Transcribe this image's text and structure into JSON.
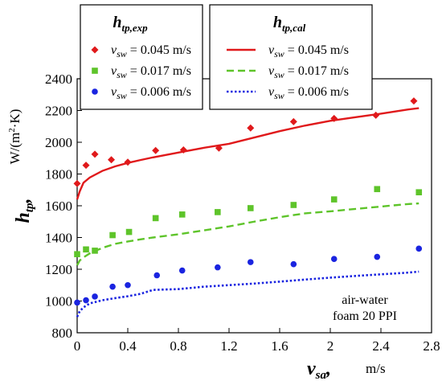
{
  "chart_data": {
    "type": "scatter",
    "x_label": {
      "main": "v",
      "sub": "sa",
      "sep": ",",
      "unit": "m/s"
    },
    "y_label": {
      "main": "h",
      "sub": "tp",
      "sep": ",",
      "unit_prefix": "W/(m",
      "unit_sup": "2",
      "unit_suffix": "·K)"
    },
    "xlim": [
      0,
      2.8
    ],
    "ylim": [
      800,
      2400
    ],
    "x_ticks": [
      "0",
      "0.4",
      "0.8",
      "1.2",
      "1.6",
      "2",
      "2.4",
      "2.8"
    ],
    "y_ticks": [
      "800",
      "1000",
      "1200",
      "1400",
      "1600",
      "1800",
      "2000",
      "2200",
      "2400"
    ],
    "annotation": [
      "air-water",
      "foam 20 PPI"
    ],
    "legend_left": {
      "title_main": "h",
      "title_sub": "tp,exp",
      "entries": [
        {
          "series": 0,
          "var": "v",
          "sub": "sw",
          "text": " = 0.045 m/s"
        },
        {
          "series": 1,
          "var": "v",
          "sub": "sw",
          "text": " = 0.017 m/s"
        },
        {
          "series": 2,
          "var": "v",
          "sub": "sw",
          "text": " = 0.006 m/s"
        }
      ]
    },
    "legend_right": {
      "title_main": "h",
      "title_sub": "tp,cal",
      "entries": [
        {
          "series": 3,
          "var": "v",
          "sub": "sw",
          "text": " = 0.045 m/s"
        },
        {
          "series": 4,
          "var": "v",
          "sub": "sw",
          "text": " = 0.017 m/s"
        },
        {
          "series": 5,
          "var": "v",
          "sub": "sw",
          "text": " = 0.006 m/s"
        }
      ]
    },
    "series": [
      {
        "name": "h_tp,exp, v_sw = 0.045 m/s",
        "kind": "scatter",
        "marker": "diamond",
        "color": "#e0191b",
        "x": [
          0,
          0.07,
          0.14,
          0.27,
          0.4,
          0.62,
          0.84,
          1.12,
          1.37,
          1.71,
          2.03,
          2.36,
          2.66
        ],
        "y": [
          1740,
          1855,
          1925,
          1890,
          1875,
          1948,
          1952,
          1963,
          2090,
          2130,
          2150,
          2170,
          2260
        ]
      },
      {
        "name": "h_tp,exp, v_sw = 0.017 m/s",
        "kind": "scatter",
        "marker": "square",
        "color": "#5ec42a",
        "x": [
          0,
          0.07,
          0.14,
          0.28,
          0.41,
          0.62,
          0.83,
          1.11,
          1.37,
          1.71,
          2.03,
          2.37,
          2.7
        ],
        "y": [
          1295,
          1325,
          1317,
          1415,
          1435,
          1522,
          1545,
          1560,
          1585,
          1605,
          1640,
          1705,
          1685
        ]
      },
      {
        "name": "h_tp,exp, v_sw = 0.006 m/s",
        "kind": "scatter",
        "marker": "circle",
        "color": "#1a24e0",
        "x": [
          0,
          0.07,
          0.14,
          0.28,
          0.4,
          0.63,
          0.83,
          1.11,
          1.37,
          1.71,
          2.03,
          2.37,
          2.7
        ],
        "y": [
          990,
          1005,
          1028,
          1090,
          1100,
          1162,
          1192,
          1212,
          1245,
          1232,
          1265,
          1278,
          1330
        ]
      },
      {
        "name": "h_tp,cal, v_sw = 0.045 m/s",
        "kind": "line",
        "dash": "solid",
        "color": "#e0191b",
        "x": [
          0,
          0.02,
          0.05,
          0.1,
          0.2,
          0.3,
          0.4,
          0.5,
          0.6,
          0.8,
          1.0,
          1.2,
          1.4,
          1.6,
          1.8,
          2.0,
          2.2,
          2.4,
          2.6,
          2.7
        ],
        "y": [
          1640,
          1690,
          1745,
          1778,
          1820,
          1848,
          1870,
          1888,
          1905,
          1935,
          1965,
          1990,
          2030,
          2070,
          2105,
          2135,
          2158,
          2180,
          2205,
          2215
        ]
      },
      {
        "name": "h_tp,cal, v_sw = 0.017 m/s",
        "kind": "line",
        "dash": "dashed",
        "color": "#5ec42a",
        "x": [
          0,
          0.02,
          0.05,
          0.1,
          0.2,
          0.3,
          0.4,
          0.5,
          0.6,
          0.8,
          1.0,
          1.2,
          1.4,
          1.6,
          1.8,
          2.0,
          2.2,
          2.4,
          2.6,
          2.7
        ],
        "y": [
          1225,
          1255,
          1275,
          1300,
          1335,
          1360,
          1375,
          1388,
          1400,
          1420,
          1445,
          1470,
          1500,
          1528,
          1552,
          1565,
          1580,
          1595,
          1610,
          1615
        ]
      },
      {
        "name": "h_tp,cal, v_sw = 0.006 m/s",
        "kind": "line",
        "dash": "dotted",
        "color": "#1a24e0",
        "x": [
          0,
          0.02,
          0.05,
          0.1,
          0.2,
          0.3,
          0.4,
          0.5,
          0.6,
          0.8,
          1.0,
          1.2,
          1.4,
          1.6,
          1.8,
          2.0,
          2.2,
          2.4,
          2.6,
          2.7
        ],
        "y": [
          900,
          935,
          960,
          985,
          1005,
          1018,
          1030,
          1045,
          1070,
          1075,
          1090,
          1100,
          1110,
          1122,
          1135,
          1147,
          1158,
          1168,
          1178,
          1185
        ]
      }
    ]
  }
}
